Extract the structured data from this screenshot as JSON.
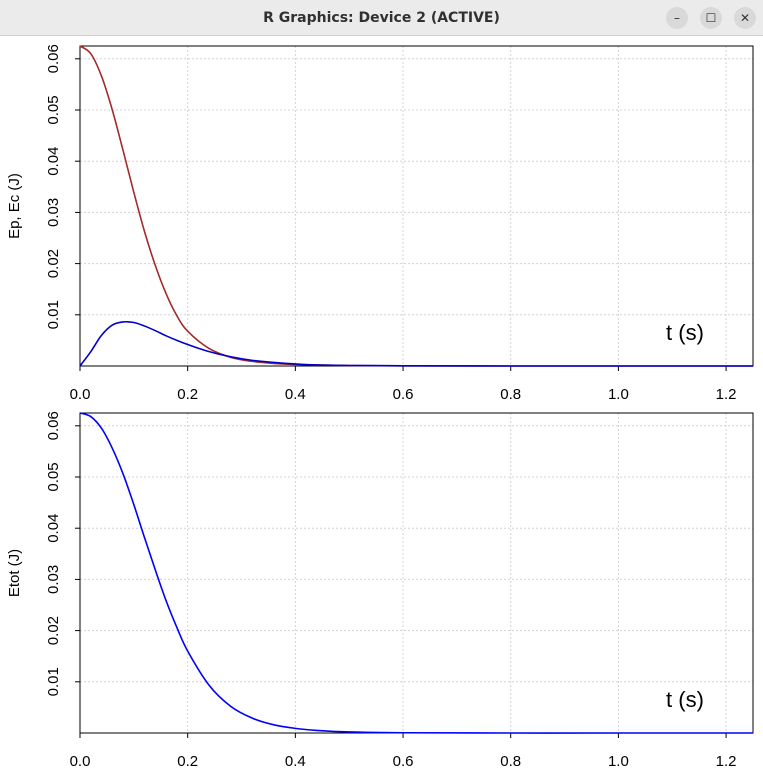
{
  "window": {
    "title": "R Graphics: Device 2 (ACTIVE)",
    "buttons": {
      "minimize": "–",
      "maximize": "☐",
      "close": "✕"
    }
  },
  "chart_data": [
    {
      "type": "line",
      "xlabel": "t (s)",
      "ylabel": "Ep, Ec  (J)",
      "xlim": [
        0,
        1.25
      ],
      "ylim": [
        0,
        0.0625
      ],
      "xticks": [
        "0.0",
        "0.2",
        "0.4",
        "0.6",
        "0.8",
        "1.0",
        "1.2"
      ],
      "yticks": [
        "0.01",
        "0.02",
        "0.03",
        "0.04",
        "0.05",
        "0.06"
      ],
      "grid": true,
      "series": [
        {
          "color": "#a52a2a",
          "x": [
            0,
            0.02,
            0.04,
            0.06,
            0.08,
            0.1,
            0.12,
            0.14,
            0.16,
            0.18,
            0.2,
            0.24,
            0.28,
            0.32,
            0.36,
            0.4,
            0.44,
            0.5,
            0.6,
            0.8,
            1.0,
            1.25
          ],
          "y": [
            0.0625,
            0.061,
            0.0566,
            0.05,
            0.0421,
            0.0339,
            0.0262,
            0.0196,
            0.0141,
            0.0098,
            0.0068,
            0.0034,
            0.0017,
            0.0009,
            0.0005,
            0.0003,
            0.0002,
            0.0001,
            3e-05,
            0.0,
            0.0,
            0.0
          ]
        },
        {
          "color": "#0000cd",
          "x": [
            0,
            0.02,
            0.04,
            0.06,
            0.08,
            0.1,
            0.12,
            0.14,
            0.16,
            0.18,
            0.2,
            0.24,
            0.28,
            0.32,
            0.36,
            0.4,
            0.44,
            0.5,
            0.6,
            0.8,
            1.0,
            1.25
          ],
          "y": [
            0.0,
            0.0028,
            0.006,
            0.008,
            0.0086,
            0.0085,
            0.0078,
            0.0069,
            0.0059,
            0.005,
            0.0042,
            0.0028,
            0.0018,
            0.0011,
            0.0007,
            0.0004,
            0.0002,
            0.0001,
            3e-05,
            0.0,
            0.0,
            0.0
          ]
        }
      ]
    },
    {
      "type": "line",
      "xlabel": "t (s)",
      "ylabel": "Etot (J)",
      "xlim": [
        0,
        1.25
      ],
      "ylim": [
        0,
        0.0625
      ],
      "xticks": [
        "0.0",
        "0.2",
        "0.4",
        "0.6",
        "0.8",
        "1.0",
        "1.2"
      ],
      "yticks": [
        "0.01",
        "0.02",
        "0.03",
        "0.04",
        "0.05",
        "0.06"
      ],
      "grid": true,
      "series": [
        {
          "color": "#0000ff",
          "x": [
            0,
            0.02,
            0.04,
            0.06,
            0.08,
            0.1,
            0.12,
            0.14,
            0.16,
            0.18,
            0.2,
            0.24,
            0.28,
            0.32,
            0.36,
            0.4,
            0.44,
            0.5,
            0.6,
            0.8,
            1.0,
            1.25
          ],
          "y": [
            0.0625,
            0.0618,
            0.0595,
            0.0556,
            0.0506,
            0.0446,
            0.0381,
            0.0318,
            0.0258,
            0.0206,
            0.016,
            0.0093,
            0.0052,
            0.0029,
            0.0016,
            0.0009,
            0.0005,
            0.0002,
            5e-05,
            0.0,
            0.0,
            0.0
          ]
        }
      ]
    }
  ]
}
